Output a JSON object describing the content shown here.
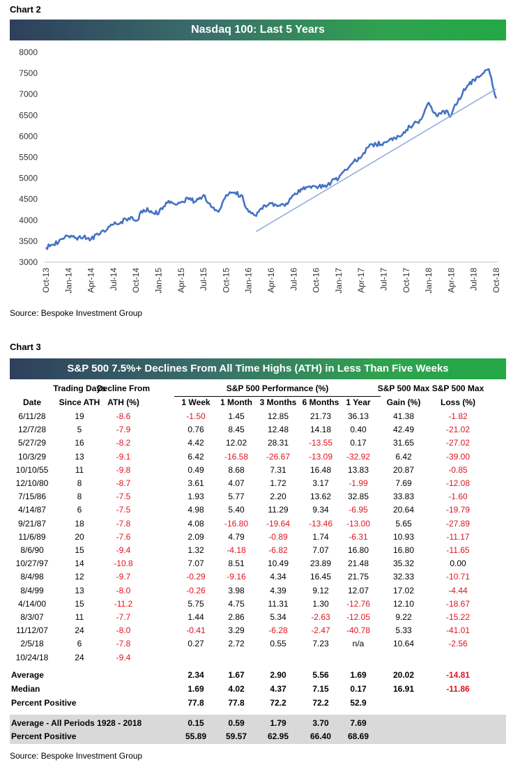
{
  "chart2_label": "Chart 2",
  "chart3_label": "Chart 3",
  "chart_data": [
    {
      "type": "line",
      "title": "Nasdaq 100: Last 5 Years",
      "xlabel": "",
      "ylabel": "",
      "ylim": [
        3000,
        8000
      ],
      "yticks": [
        3000,
        3500,
        4000,
        4500,
        5000,
        5500,
        6000,
        6500,
        7000,
        7500,
        8000
      ],
      "xticks": [
        "Oct-13",
        "Jan-14",
        "Apr-14",
        "Jul-14",
        "Oct-14",
        "Jan-15",
        "Apr-15",
        "Jul-15",
        "Oct-15",
        "Jan-16",
        "Apr-16",
        "Jul-16",
        "Oct-16",
        "Jan-17",
        "Apr-17",
        "Jul-17",
        "Oct-17",
        "Jan-18",
        "Apr-18",
        "Jul-18",
        "Oct-18"
      ],
      "grid": false,
      "series": [
        {
          "color": "#4472c4",
          "x": [
            "Oct-13",
            "Nov-13",
            "Dec-13",
            "Jan-14",
            "Feb-14",
            "Mar-14",
            "Apr-14",
            "May-14",
            "Jun-14",
            "Jul-14",
            "Aug-14",
            "Sep-14",
            "Oct-14",
            "Nov-14",
            "Dec-14",
            "Jan-15",
            "Feb-15",
            "Mar-15",
            "Apr-15",
            "May-15",
            "Jun-15",
            "Jul-15",
            "Aug-15",
            "Sep-15",
            "Oct-15",
            "Nov-15",
            "Dec-15",
            "Jan-16",
            "Feb-16",
            "Mar-16",
            "Apr-16",
            "May-16",
            "Jun-16",
            "Jul-16",
            "Aug-16",
            "Sep-16",
            "Oct-16",
            "Nov-16",
            "Dec-16",
            "Jan-17",
            "Feb-17",
            "Mar-17",
            "Apr-17",
            "May-17",
            "Jun-17",
            "Jul-17",
            "Aug-17",
            "Sep-17",
            "Oct-17",
            "Nov-17",
            "Dec-17",
            "Jan-18",
            "Feb-18",
            "Mar-18",
            "Apr-18",
            "May-18",
            "Jun-18",
            "Jul-18",
            "Aug-18",
            "Sep-18",
            "Oct-18"
          ],
          "values": [
            3350,
            3420,
            3550,
            3620,
            3580,
            3600,
            3550,
            3650,
            3750,
            3900,
            3960,
            4050,
            3980,
            4250,
            4220,
            4150,
            4420,
            4400,
            4430,
            4500,
            4450,
            4600,
            4320,
            4200,
            4600,
            4650,
            4600,
            4200,
            4100,
            4350,
            4400,
            4350,
            4400,
            4600,
            4750,
            4800,
            4800,
            4800,
            4900,
            5000,
            5200,
            5400,
            5500,
            5750,
            5800,
            5850,
            5950,
            6000,
            6150,
            6300,
            6400,
            6800,
            6500,
            6600,
            6500,
            6900,
            7150,
            7350,
            7450,
            7600,
            6900
          ]
        },
        {
          "name": "",
          "color": "#8ea9db",
          "type": "trendline",
          "x": [
            "Feb-16",
            "Oct-18"
          ],
          "values": [
            3730,
            7130
          ]
        }
      ]
    },
    {
      "type": "table",
      "title": "S&P 500 7.5%+ Declines From All Time Highs (ATH) in Less Than Five Weeks",
      "group_header": "S&P 500 Performance (%)",
      "columns": [
        {
          "line1": "",
          "line2": "Date"
        },
        {
          "line1": "Trading Days",
          "line2": "Since ATH"
        },
        {
          "line1": "Decline From",
          "line2": "ATH (%)"
        },
        {
          "line1": "",
          "line2": "1 Week"
        },
        {
          "line1": "",
          "line2": "1 Month"
        },
        {
          "line1": "",
          "line2": "3 Months"
        },
        {
          "line1": "",
          "line2": "6 Months"
        },
        {
          "line1": "",
          "line2": "1 Year"
        },
        {
          "line1": "S&P 500 Max",
          "line2": "Gain (%)"
        },
        {
          "line1": "S&P 500 Max",
          "line2": "Loss (%)"
        }
      ],
      "rows": [
        [
          "6/11/28",
          "19",
          "-8.6",
          "-1.50",
          "1.45",
          "12.85",
          "21.73",
          "36.13",
          "41.38",
          "-1.82"
        ],
        [
          "12/7/28",
          "5",
          "-7.9",
          "0.76",
          "8.45",
          "12.48",
          "14.18",
          "0.40",
          "42.49",
          "-21.02"
        ],
        [
          "5/27/29",
          "16",
          "-8.2",
          "4.42",
          "12.02",
          "28.31",
          "-13.55",
          "0.17",
          "31.65",
          "-27.02"
        ],
        [
          "10/3/29",
          "13",
          "-9.1",
          "6.42",
          "-16.58",
          "-26.67",
          "-13.09",
          "-32.92",
          "6.42",
          "-39.00"
        ],
        [
          "10/10/55",
          "11",
          "-9.8",
          "0.49",
          "8.68",
          "7.31",
          "16.48",
          "13.83",
          "20.87",
          "-0.85"
        ],
        [
          "12/10/80",
          "8",
          "-8.7",
          "3.61",
          "4.07",
          "1.72",
          "3.17",
          "-1.99",
          "7.69",
          "-12.08"
        ],
        [
          "7/15/86",
          "8",
          "-7.5",
          "1.93",
          "5.77",
          "2.20",
          "13.62",
          "32.85",
          "33.83",
          "-1.60"
        ],
        [
          "4/14/87",
          "6",
          "-7.5",
          "4.98",
          "5.40",
          "11.29",
          "9.34",
          "-6.95",
          "20.64",
          "-19.79"
        ],
        [
          "9/21/87",
          "18",
          "-7.8",
          "4.08",
          "-16.80",
          "-19.64",
          "-13.46",
          "-13.00",
          "5.65",
          "-27.89"
        ],
        [
          "11/6/89",
          "20",
          "-7.6",
          "2.09",
          "4.79",
          "-0.89",
          "1.74",
          "-6.31",
          "10.93",
          "-11.17"
        ],
        [
          "8/6/90",
          "15",
          "-9.4",
          "1.32",
          "-4.18",
          "-6.82",
          "7.07",
          "16.80",
          "16.80",
          "-11.65"
        ],
        [
          "10/27/97",
          "14",
          "-10.8",
          "7.07",
          "8.51",
          "10.49",
          "23.89",
          "21.48",
          "35.32",
          "0.00"
        ],
        [
          "8/4/98",
          "12",
          "-9.7",
          "-0.29",
          "-9.16",
          "4.34",
          "16.45",
          "21.75",
          "32.33",
          "-10.71"
        ],
        [
          "8/4/99",
          "13",
          "-8.0",
          "-0.26",
          "3.98",
          "4.39",
          "9.12",
          "12.07",
          "17.02",
          "-4.44"
        ],
        [
          "4/14/00",
          "15",
          "-11.2",
          "5.75",
          "4.75",
          "11.31",
          "1.30",
          "-12.76",
          "12.10",
          "-18.67"
        ],
        [
          "8/3/07",
          "11",
          "-7.7",
          "1.44",
          "2.86",
          "5.34",
          "-2.63",
          "-12.05",
          "9.22",
          "-15.22"
        ],
        [
          "11/12/07",
          "24",
          "-8.0",
          "-0.41",
          "3.29",
          "-6.28",
          "-2.47",
          "-40.78",
          "5.33",
          "-41.01"
        ],
        [
          "2/5/18",
          "6",
          "-7.8",
          "0.27",
          "2.72",
          "0.55",
          "7.23",
          "n/a",
          "10.64",
          "-2.56"
        ],
        [
          "10/24/18",
          "24",
          "-9.4",
          "",
          "",
          "",
          "",
          "",
          "",
          ""
        ]
      ],
      "summary_rows": [
        [
          "Average",
          "",
          "",
          "2.34",
          "1.67",
          "2.90",
          "5.56",
          "1.69",
          "20.02",
          "-14.81"
        ],
        [
          "Median",
          "",
          "",
          "1.69",
          "4.02",
          "4.37",
          "7.15",
          "0.17",
          "16.91",
          "-11.86"
        ],
        [
          "Percent Positive",
          "",
          "",
          "77.8",
          "77.8",
          "72.2",
          "72.2",
          "52.9",
          "",
          ""
        ]
      ],
      "all_period_rows": [
        [
          "Average - All Periods 1928 - 2018",
          "",
          "",
          "0.15",
          "0.59",
          "1.79",
          "3.70",
          "7.69",
          "",
          ""
        ],
        [
          "Percent Positive",
          "",
          "",
          "55.89",
          "59.57",
          "62.95",
          "66.40",
          "68.69",
          "",
          ""
        ]
      ]
    }
  ],
  "source_1": "Source: Bespoke Investment Group",
  "source_2": "Source: Bespoke Investment Group"
}
